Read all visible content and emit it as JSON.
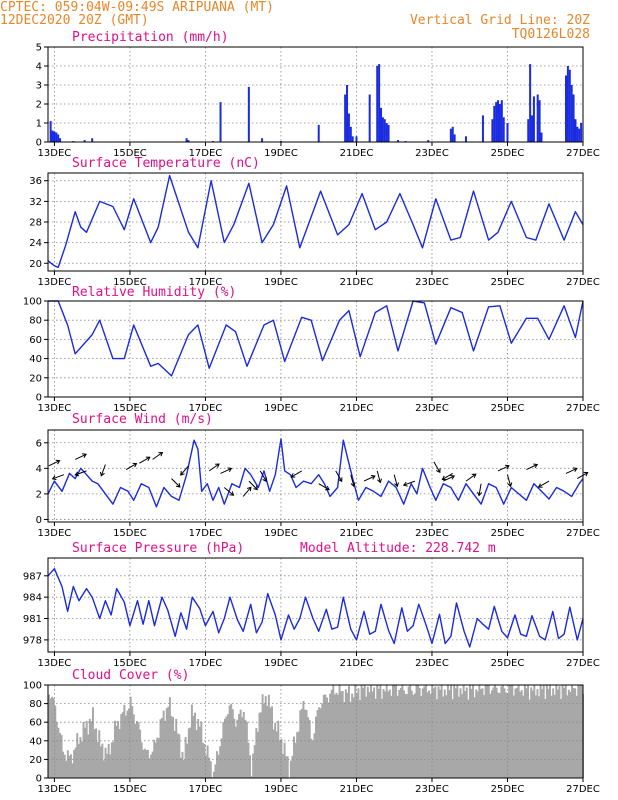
{
  "header": {
    "line1_left": "CPTEC:   059:04W-09:49S  ARIPUANA (MT)",
    "line2_left": "12DEC2020 20Z (GMT)",
    "line1_right": "Vertical Grid Line: 20Z",
    "line2_right": "TQ0126L028"
  },
  "colors": {
    "header": "#e8862a",
    "panel_title": "#e0108a",
    "series": "#1a2be0",
    "cloud": "#a8a8a8",
    "arrow": "#000000"
  },
  "chart_data": [
    {
      "type": "bar",
      "title": "Precipitation (mm/h)",
      "x_tick_labels": [
        "13DEC",
        "15DEC",
        "17DEC",
        "19DEC",
        "21DEC",
        "23DEC",
        "25DEC",
        "27DEC"
      ],
      "y_tick_labels": [
        "0",
        "1",
        "2",
        "3",
        "4",
        "5"
      ],
      "ylim": [
        0,
        5
      ],
      "x_range_days": [
        12.83,
        27.0
      ],
      "grid": true,
      "events": [
        {
          "t": 12.9,
          "v": 1.1
        },
        {
          "t": 12.95,
          "v": 0.6
        },
        {
          "t": 13.0,
          "v": 0.55
        },
        {
          "t": 13.05,
          "v": 0.5
        },
        {
          "t": 13.1,
          "v": 0.4
        },
        {
          "t": 13.15,
          "v": 0.2
        },
        {
          "t": 13.5,
          "v": 0.05
        },
        {
          "t": 13.8,
          "v": 0.1
        },
        {
          "t": 14.0,
          "v": 0.2
        },
        {
          "t": 16.5,
          "v": 0.2
        },
        {
          "t": 16.55,
          "v": 0.1
        },
        {
          "t": 17.2,
          "v": 0.05
        },
        {
          "t": 17.4,
          "v": 2.1
        },
        {
          "t": 18.15,
          "v": 2.9
        },
        {
          "t": 18.5,
          "v": 0.2
        },
        {
          "t": 19.0,
          "v": 0.05
        },
        {
          "t": 20.0,
          "v": 0.9
        },
        {
          "t": 20.7,
          "v": 2.5
        },
        {
          "t": 20.75,
          "v": 3.0
        },
        {
          "t": 20.8,
          "v": 1.5
        },
        {
          "t": 20.85,
          "v": 0.8
        },
        {
          "t": 20.9,
          "v": 0.3
        },
        {
          "t": 21.0,
          "v": 0.3
        },
        {
          "t": 21.35,
          "v": 2.5
        },
        {
          "t": 21.55,
          "v": 4.0
        },
        {
          "t": 21.6,
          "v": 4.1
        },
        {
          "t": 21.65,
          "v": 1.8
        },
        {
          "t": 21.7,
          "v": 1.3
        },
        {
          "t": 21.75,
          "v": 1.2
        },
        {
          "t": 21.8,
          "v": 1.0
        },
        {
          "t": 21.85,
          "v": 0.9
        },
        {
          "t": 22.1,
          "v": 0.1
        },
        {
          "t": 22.3,
          "v": 0.05
        },
        {
          "t": 22.9,
          "v": 0.1
        },
        {
          "t": 23.5,
          "v": 0.7
        },
        {
          "t": 23.55,
          "v": 0.8
        },
        {
          "t": 23.6,
          "v": 0.4
        },
        {
          "t": 23.9,
          "v": 0.3
        },
        {
          "t": 24.35,
          "v": 1.4
        },
        {
          "t": 24.6,
          "v": 1.2
        },
        {
          "t": 24.65,
          "v": 1.9
        },
        {
          "t": 24.7,
          "v": 2.1
        },
        {
          "t": 24.75,
          "v": 2.2
        },
        {
          "t": 24.8,
          "v": 2.0
        },
        {
          "t": 24.85,
          "v": 2.2
        },
        {
          "t": 24.9,
          "v": 1.3
        },
        {
          "t": 25.0,
          "v": 1.0
        },
        {
          "t": 25.55,
          "v": 1.2
        },
        {
          "t": 25.6,
          "v": 4.1
        },
        {
          "t": 25.65,
          "v": 1.4
        },
        {
          "t": 25.7,
          "v": 2.4
        },
        {
          "t": 25.8,
          "v": 2.5
        },
        {
          "t": 25.85,
          "v": 2.2
        },
        {
          "t": 25.9,
          "v": 0.5
        },
        {
          "t": 26.55,
          "v": 3.5
        },
        {
          "t": 26.6,
          "v": 4.0
        },
        {
          "t": 26.65,
          "v": 3.8
        },
        {
          "t": 26.7,
          "v": 3.0
        },
        {
          "t": 26.75,
          "v": 2.5
        },
        {
          "t": 26.8,
          "v": 1.2
        },
        {
          "t": 26.85,
          "v": 0.8
        },
        {
          "t": 26.9,
          "v": 0.7
        },
        {
          "t": 26.95,
          "v": 1.0
        }
      ]
    },
    {
      "type": "line",
      "title": "Surface Temperature (nC)",
      "x_tick_labels": [
        "13DEC",
        "15DEC",
        "17DEC",
        "19DEC",
        "21DEC",
        "23DEC",
        "25DEC",
        "27DEC"
      ],
      "y_tick_labels": [
        "20",
        "24",
        "28",
        "32",
        "36"
      ],
      "ylim": [
        18.5,
        37.5
      ],
      "x_range_days": [
        12.83,
        27.0
      ],
      "grid": true,
      "x": [
        12.83,
        13.0,
        13.1,
        13.3,
        13.55,
        13.7,
        13.85,
        14.2,
        14.55,
        14.85,
        15.1,
        15.55,
        15.75,
        16.05,
        16.55,
        16.8,
        17.15,
        17.5,
        17.75,
        18.15,
        18.5,
        18.8,
        19.15,
        19.5,
        19.75,
        20.05,
        20.5,
        20.8,
        21.15,
        21.5,
        21.8,
        22.15,
        22.5,
        22.75,
        23.1,
        23.5,
        23.75,
        24.1,
        24.5,
        24.75,
        25.1,
        25.5,
        25.75,
        26.1,
        26.5,
        26.8,
        27.0
      ],
      "y": [
        20.5,
        19.5,
        19.2,
        23.5,
        30.0,
        27.0,
        26.0,
        32.0,
        31.0,
        26.5,
        32.5,
        24.0,
        27.0,
        37.0,
        26.0,
        23.0,
        36.0,
        24.0,
        27.5,
        35.5,
        24.0,
        27.5,
        35.0,
        23.0,
        28.0,
        34.0,
        25.5,
        27.5,
        33.5,
        26.5,
        28.0,
        33.5,
        27.5,
        23.0,
        32.5,
        24.5,
        25.0,
        34.0,
        24.5,
        26.0,
        32.0,
        25.0,
        24.5,
        31.5,
        24.5,
        30.0,
        27.5
      ]
    },
    {
      "type": "line",
      "title": "Relative Humidity (%)",
      "x_tick_labels": [
        "13DEC",
        "15DEC",
        "17DEC",
        "19DEC",
        "21DEC",
        "23DEC",
        "25DEC",
        "27DEC"
      ],
      "y_tick_labels": [
        "0",
        "20",
        "40",
        "60",
        "80",
        "100"
      ],
      "ylim": [
        0,
        100
      ],
      "x_range_days": [
        12.83,
        27.0
      ],
      "grid": true,
      "x": [
        12.83,
        13.1,
        13.35,
        13.55,
        14.0,
        14.2,
        14.55,
        14.85,
        15.1,
        15.55,
        15.75,
        16.1,
        16.55,
        16.8,
        17.1,
        17.55,
        17.8,
        18.1,
        18.55,
        18.8,
        19.1,
        19.55,
        19.8,
        20.1,
        20.55,
        20.8,
        21.1,
        21.5,
        21.8,
        22.1,
        22.5,
        22.8,
        23.1,
        23.5,
        23.8,
        24.1,
        24.5,
        24.8,
        25.1,
        25.5,
        25.8,
        26.1,
        26.5,
        26.8,
        27.0
      ],
      "y": [
        100,
        100,
        75,
        45,
        65,
        80,
        40,
        40,
        75,
        32,
        35,
        22,
        65,
        75,
        30,
        75,
        68,
        32,
        75,
        80,
        37,
        83,
        80,
        38,
        80,
        90,
        42,
        88,
        95,
        48,
        100,
        98,
        55,
        93,
        88,
        48,
        94,
        95,
        56,
        82,
        82,
        60,
        95,
        62,
        100
      ]
    },
    {
      "type": "line",
      "title": "Surface Wind (m/s)",
      "x_tick_labels": [
        "13DEC",
        "15DEC",
        "17DEC",
        "19DEC",
        "21DEC",
        "23DEC",
        "25DEC",
        "27DEC"
      ],
      "y_tick_labels": [
        "0",
        "2",
        "4",
        "6"
      ],
      "ylim": [
        -0.2,
        7.0
      ],
      "x_range_days": [
        12.83,
        27.0
      ],
      "grid": true,
      "x": [
        12.83,
        13.0,
        13.2,
        13.4,
        13.55,
        13.7,
        13.85,
        14.0,
        14.15,
        14.35,
        14.55,
        14.75,
        14.95,
        15.1,
        15.3,
        15.5,
        15.7,
        15.9,
        16.1,
        16.3,
        16.5,
        16.7,
        16.8,
        16.9,
        17.05,
        17.2,
        17.35,
        17.5,
        17.7,
        17.9,
        18.05,
        18.2,
        18.4,
        18.55,
        18.7,
        18.85,
        19.0,
        19.1,
        19.25,
        19.4,
        19.6,
        19.8,
        20.0,
        20.15,
        20.3,
        20.5,
        20.65,
        20.75,
        20.9,
        21.05,
        21.25,
        21.45,
        21.65,
        21.85,
        22.05,
        22.25,
        22.45,
        22.6,
        22.75,
        22.95,
        23.1,
        23.3,
        23.5,
        23.7,
        23.9,
        24.1,
        24.3,
        24.5,
        24.7,
        24.9,
        25.1,
        25.3,
        25.5,
        25.7,
        25.9,
        26.1,
        26.3,
        26.5,
        26.7,
        26.9,
        27.0
      ],
      "y": [
        2.0,
        3.0,
        2.2,
        3.6,
        3.2,
        4.0,
        3.5,
        3.0,
        2.8,
        2.0,
        1.2,
        2.5,
        2.2,
        1.5,
        2.8,
        2.5,
        1.0,
        2.5,
        1.8,
        1.5,
        3.5,
        6.2,
        5.5,
        2.2,
        2.8,
        1.5,
        2.5,
        1.2,
        2.8,
        2.5,
        4.0,
        3.5,
        2.5,
        3.8,
        2.2,
        3.5,
        6.3,
        3.8,
        3.5,
        2.5,
        3.0,
        2.8,
        3.5,
        2.8,
        1.8,
        2.5,
        6.2,
        5.0,
        3.2,
        1.5,
        2.5,
        2.2,
        1.8,
        3.0,
        2.5,
        1.2,
        2.8,
        2.0,
        4.0,
        2.5,
        1.5,
        2.8,
        2.5,
        1.5,
        2.8,
        2.0,
        1.2,
        2.8,
        2.5,
        1.2,
        2.5,
        2.0,
        1.5,
        2.8,
        2.2,
        1.6,
        2.5,
        2.2,
        1.8,
        2.8,
        3.2
      ],
      "vectors": [
        {
          "t": 12.85,
          "y": 4.2,
          "ang": -25
        },
        {
          "t": 13.25,
          "y": 3.5,
          "ang": 160
        },
        {
          "t": 13.55,
          "y": 4.7,
          "ang": -25
        },
        {
          "t": 13.85,
          "y": 3.8,
          "ang": 160
        },
        {
          "t": 14.35,
          "y": 4.3,
          "ang": 110
        },
        {
          "t": 14.9,
          "y": 3.9,
          "ang": -30
        },
        {
          "t": 15.25,
          "y": 4.4,
          "ang": -30
        },
        {
          "t": 15.6,
          "y": 4.7,
          "ang": -35
        },
        {
          "t": 16.1,
          "y": 3.2,
          "ang": 45
        },
        {
          "t": 16.55,
          "y": 4.2,
          "ang": 130
        },
        {
          "t": 17.1,
          "y": 3.8,
          "ang": -35
        },
        {
          "t": 17.4,
          "y": 3.6,
          "ang": -25
        },
        {
          "t": 17.5,
          "y": 2.5,
          "ang": 40
        },
        {
          "t": 18.0,
          "y": 1.8,
          "ang": -50
        },
        {
          "t": 18.15,
          "y": 3.0,
          "ang": 45
        },
        {
          "t": 18.45,
          "y": 3.8,
          "ang": 60
        },
        {
          "t": 19.55,
          "y": 3.8,
          "ang": 150
        },
        {
          "t": 20.0,
          "y": 2.8,
          "ang": 30
        },
        {
          "t": 20.45,
          "y": 3.8,
          "ang": 60
        },
        {
          "t": 20.85,
          "y": 3.5,
          "ang": 75
        },
        {
          "t": 21.2,
          "y": 3.0,
          "ang": -25
        },
        {
          "t": 21.55,
          "y": 3.8,
          "ang": 75
        },
        {
          "t": 22.0,
          "y": 3.5,
          "ang": 75
        },
        {
          "t": 22.55,
          "y": 3.0,
          "ang": 160
        },
        {
          "t": 23.05,
          "y": 4.5,
          "ang": 60
        },
        {
          "t": 23.3,
          "y": 3.0,
          "ang": -25
        },
        {
          "t": 23.55,
          "y": 3.6,
          "ang": 150
        },
        {
          "t": 23.9,
          "y": 3.0,
          "ang": -35
        },
        {
          "t": 24.3,
          "y": 2.8,
          "ang": 100
        },
        {
          "t": 24.75,
          "y": 3.8,
          "ang": -25
        },
        {
          "t": 25.0,
          "y": 3.5,
          "ang": 75
        },
        {
          "t": 25.5,
          "y": 3.9,
          "ang": -25
        },
        {
          "t": 26.1,
          "y": 3.0,
          "ang": 150
        },
        {
          "t": 26.55,
          "y": 3.6,
          "ang": -25
        },
        {
          "t": 26.85,
          "y": 3.2,
          "ang": -30
        }
      ]
    },
    {
      "type": "line",
      "title": "Surface Pressure (hPa)",
      "subtitle": "Model Altitude: 228.742 m",
      "x_tick_labels": [
        "13DEC",
        "15DEC",
        "17DEC",
        "19DEC",
        "21DEC",
        "23DEC",
        "25DEC",
        "27DEC"
      ],
      "y_tick_labels": [
        "978",
        "981",
        "984",
        "987"
      ],
      "ylim": [
        976.3,
        989.5
      ],
      "x_range_days": [
        12.83,
        27.0
      ],
      "grid": true,
      "x": [
        12.83,
        13.0,
        13.2,
        13.35,
        13.5,
        13.65,
        13.85,
        14.0,
        14.2,
        14.35,
        14.5,
        14.65,
        14.85,
        15.0,
        15.2,
        15.35,
        15.5,
        15.65,
        15.85,
        16.0,
        16.2,
        16.35,
        16.5,
        16.65,
        16.85,
        17.0,
        17.2,
        17.35,
        17.5,
        17.65,
        17.85,
        18.0,
        18.2,
        18.35,
        18.5,
        18.65,
        18.85,
        19.0,
        19.2,
        19.35,
        19.5,
        19.65,
        19.85,
        20.0,
        20.2,
        20.35,
        20.5,
        20.65,
        20.85,
        21.0,
        21.2,
        21.35,
        21.5,
        21.65,
        21.85,
        22.0,
        22.2,
        22.35,
        22.5,
        22.65,
        22.85,
        23.0,
        23.2,
        23.35,
        23.5,
        23.65,
        23.85,
        24.0,
        24.2,
        24.35,
        24.5,
        24.65,
        24.85,
        25.0,
        25.2,
        25.35,
        25.5,
        25.65,
        25.85,
        26.0,
        26.2,
        26.35,
        26.5,
        26.65,
        26.85,
        27.0
      ],
      "y": [
        987.0,
        988.0,
        985.5,
        982.0,
        985.5,
        983.5,
        985.2,
        984.0,
        981.0,
        983.5,
        981.5,
        985.2,
        983.3,
        980.0,
        983.5,
        980.2,
        983.5,
        980.0,
        984.0,
        982.2,
        978.5,
        981.8,
        979.5,
        984.0,
        982.4,
        980.0,
        982.0,
        979.0,
        981.0,
        984.0,
        980.8,
        979.2,
        983.0,
        979.0,
        980.5,
        984.5,
        981.5,
        978.0,
        981.5,
        979.5,
        981.0,
        984.0,
        981.0,
        979.2,
        982.3,
        979.5,
        979.8,
        984.0,
        979.5,
        978.0,
        982.0,
        978.8,
        979.2,
        983.0,
        979.3,
        977.5,
        982.5,
        979.2,
        980.0,
        983.0,
        980.0,
        977.5,
        981.6,
        977.5,
        978.5,
        983.2,
        979.2,
        977.0,
        981.0,
        980.2,
        979.5,
        982.7,
        979.2,
        978.3,
        981.5,
        978.8,
        978.5,
        981.4,
        978.5,
        978.0,
        982.0,
        978.2,
        978.8,
        982.6,
        978.0,
        981.0
      ]
    },
    {
      "type": "bar",
      "title": "Cloud Cover (%)",
      "x_tick_labels": [
        "13DEC",
        "15DEC",
        "17DEC",
        "19DEC",
        "21DEC",
        "23DEC",
        "25DEC",
        "27DEC"
      ],
      "y_tick_labels": [
        "0",
        "20",
        "40",
        "60",
        "80",
        "100"
      ],
      "ylim": [
        0,
        100
      ],
      "x_range_days": [
        12.83,
        27.0
      ],
      "grid": true,
      "profile_x": [
        12.83,
        13.0,
        13.2,
        13.4,
        13.6,
        13.8,
        14.0,
        14.2,
        14.4,
        14.6,
        14.8,
        15.0,
        15.2,
        15.4,
        15.6,
        15.8,
        16.0,
        16.2,
        16.4,
        16.6,
        16.8,
        17.0,
        17.2,
        17.4,
        17.6,
        17.8,
        18.0,
        18.2,
        18.4,
        18.6,
        18.8,
        19.0,
        19.2,
        19.4,
        19.6,
        19.8,
        20.0,
        20.4,
        20.8,
        21.2,
        21.6,
        22.0,
        22.4,
        22.8,
        23.2,
        23.6,
        24.0,
        24.4,
        24.8,
        25.2,
        25.6,
        26.0,
        26.4,
        26.8,
        27.0
      ],
      "profile_y": [
        95,
        75,
        30,
        20,
        40,
        55,
        65,
        35,
        25,
        55,
        70,
        80,
        55,
        25,
        30,
        60,
        80,
        55,
        20,
        70,
        60,
        30,
        5,
        45,
        80,
        60,
        75,
        10,
        70,
        90,
        60,
        40,
        10,
        50,
        85,
        40,
        80,
        95,
        90,
        98,
        95,
        97,
        94,
        97,
        95,
        97,
        95,
        98,
        96,
        97,
        95,
        97,
        96,
        97,
        96
      ]
    }
  ]
}
